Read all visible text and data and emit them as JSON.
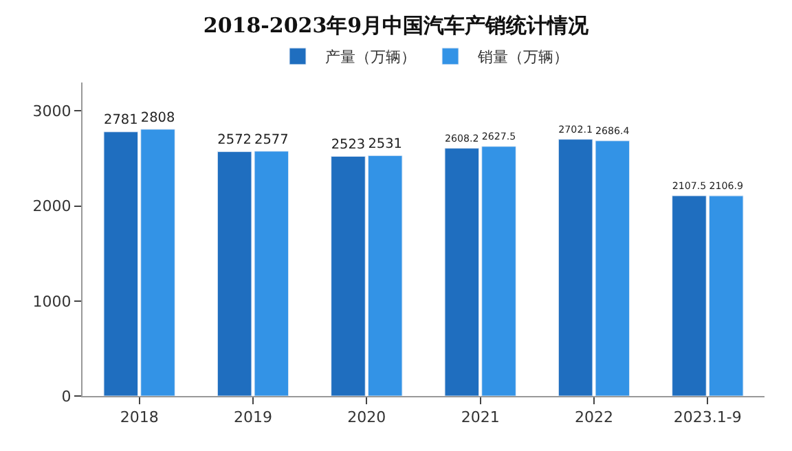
{
  "chart_data": {
    "type": "bar",
    "title": "2018-2023年9月中国汽车产销统计情况",
    "categories": [
      "2018",
      "2019",
      "2020",
      "2021",
      "2022",
      "2023.1-9"
    ],
    "series": [
      {
        "name": "产量（万辆）",
        "color": "#1f6ebf",
        "values": [
          2781,
          2572,
          2523,
          2608.2,
          2702.1,
          2107.5
        ]
      },
      {
        "name": "销量（万辆）",
        "color": "#3393e6",
        "values": [
          2808,
          2577,
          2531,
          2627.5,
          2686.4,
          2106.9
        ]
      }
    ],
    "ylim": [
      0,
      3300
    ],
    "yticks": [
      0,
      1000,
      2000,
      3000
    ],
    "grid": false,
    "legend": "top",
    "data_labels": true
  }
}
